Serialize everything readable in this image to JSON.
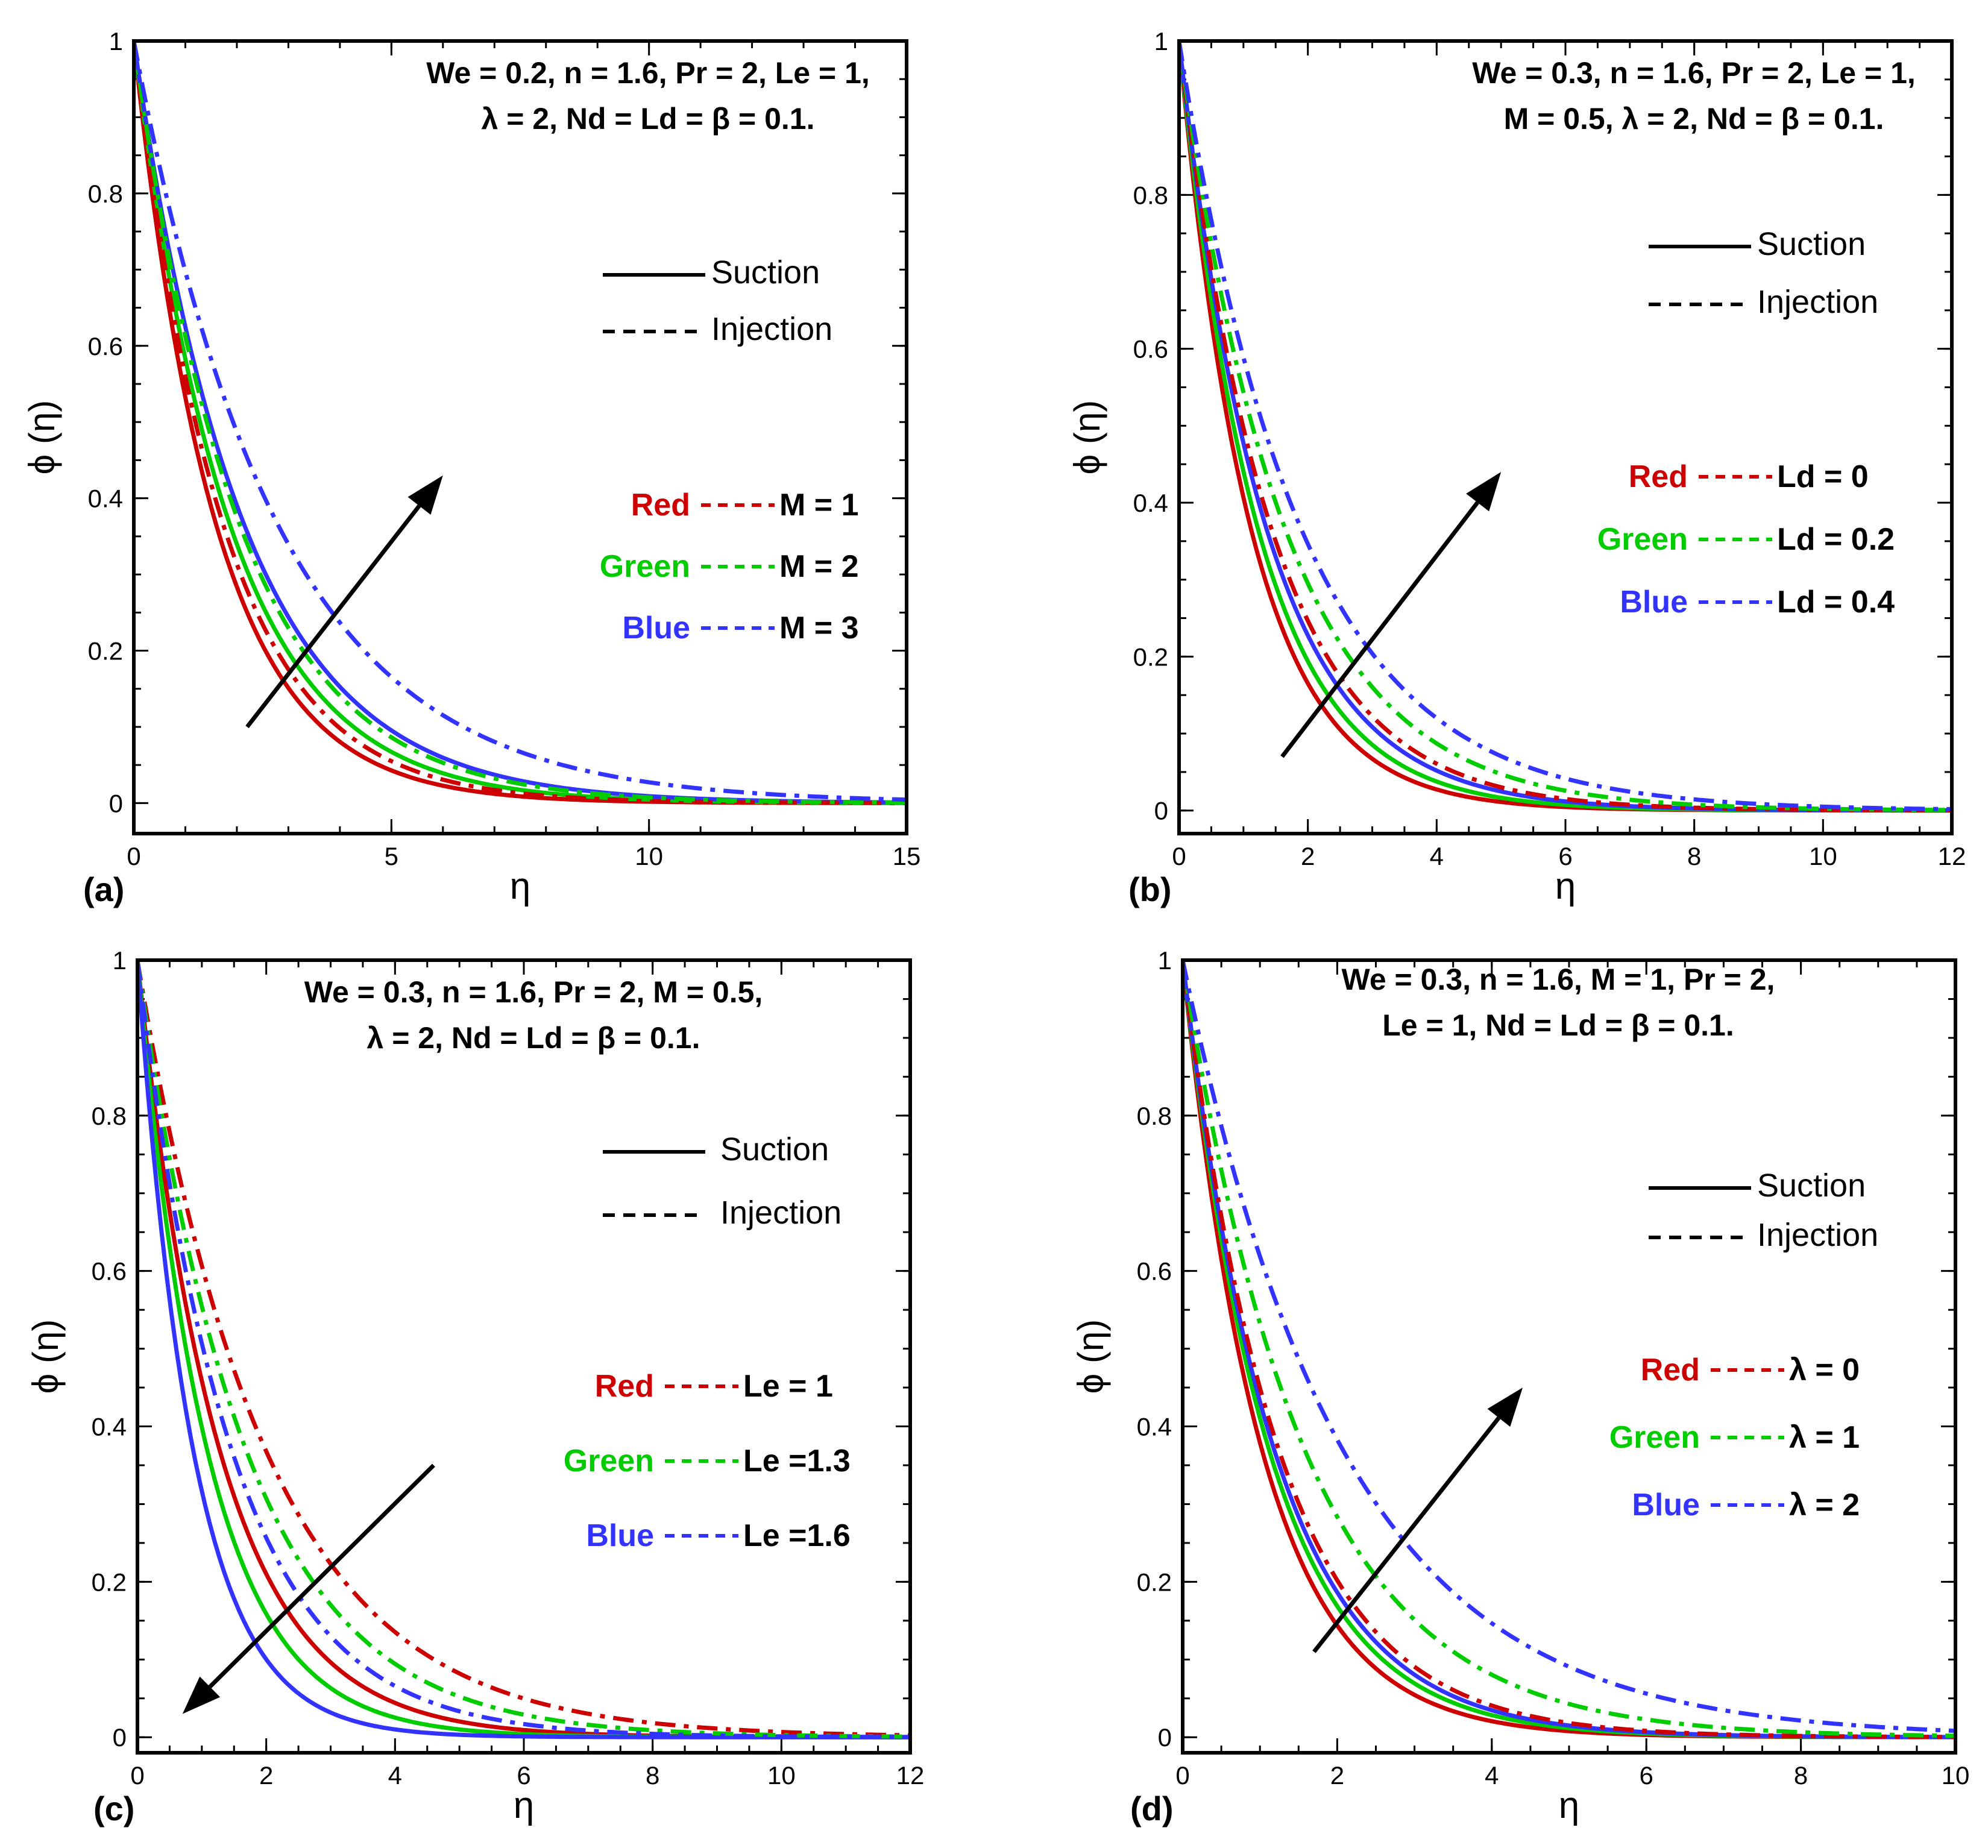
{
  "colors": {
    "red": "#cc0000",
    "green": "#00cc00",
    "blue": "#3333ff",
    "black": "#000000"
  },
  "chart_data": [
    {
      "id": "a",
      "type": "line",
      "panel_label": "(a)",
      "title_lines": [
        "We = 0.2, n = 1.6, Pr = 2,  Le = 1,",
        "λ = 2, Nd = Ld = β = 0.1."
      ],
      "xlabel": "η",
      "ylabel": "ϕ (η)",
      "xlim": [
        0,
        15
      ],
      "ylim": [
        -0.04,
        1
      ],
      "xticks": [
        0,
        5,
        10,
        15
      ],
      "yticks": [
        0,
        0.2,
        0.4,
        0.6,
        0.8,
        1
      ],
      "minor_x": 1,
      "minor_y": 0.05,
      "style_legend": [
        {
          "label": "Suction",
          "dash": "solid"
        },
        {
          "label": "Injection",
          "dash": "dashed"
        }
      ],
      "color_legend": [
        {
          "color_name": "Red",
          "color": "red",
          "label": "M = 1"
        },
        {
          "color_name": "Green",
          "color": "green",
          "label": "M = 2"
        },
        {
          "color_name": "Blue",
          "color": "blue",
          "label": "M = 3"
        }
      ],
      "series": [
        {
          "name": "Suction, M = 1",
          "color": "red",
          "dash": "solid",
          "decay": 0.63
        },
        {
          "name": "Suction, M = 2",
          "color": "green",
          "dash": "solid",
          "decay": 0.54
        },
        {
          "name": "Suction, M = 3",
          "color": "blue",
          "dash": "solid",
          "decay": 0.47
        },
        {
          "name": "Injection, M = 1",
          "color": "red",
          "dash": "dashdot",
          "decay": 0.58
        },
        {
          "name": "Injection, M = 2",
          "color": "green",
          "dash": "dashdot",
          "decay": 0.49
        },
        {
          "name": "Injection, M = 3",
          "color": "blue",
          "dash": "dashdot",
          "decay": 0.36
        }
      ],
      "arrow": {
        "from": [
          2.2,
          0.1
        ],
        "to": [
          6.0,
          0.43
        ]
      }
    },
    {
      "id": "b",
      "type": "line",
      "panel_label": "(b)",
      "title_lines": [
        "We = 0.3, n = 1.6, Pr = 2,  Le = 1,",
        "M = 0.5, λ = 2, Nd  = β = 0.1."
      ],
      "xlabel": "η",
      "ylabel": "ϕ (η)",
      "xlim": [
        0,
        12
      ],
      "ylim": [
        -0.03,
        1
      ],
      "xticks": [
        0,
        2,
        4,
        6,
        8,
        10,
        12
      ],
      "yticks": [
        0,
        0.2,
        0.4,
        0.6,
        0.8,
        1
      ],
      "minor_x": 0.5,
      "minor_y": 0.05,
      "style_legend": [
        {
          "label": "Suction",
          "dash": "solid"
        },
        {
          "label": "Injection",
          "dash": "dashed"
        }
      ],
      "color_legend": [
        {
          "color_name": "Red",
          "color": "red",
          "label": "Ld = 0"
        },
        {
          "color_name": "Green",
          "color": "green",
          "label": "Ld = 0.2"
        },
        {
          "color_name": "Blue",
          "color": "blue",
          "label": "Ld = 0.4"
        }
      ],
      "series": [
        {
          "name": "Suction, Ld = 0",
          "color": "red",
          "dash": "solid",
          "decay": 0.9
        },
        {
          "name": "Suction, Ld = 0.2",
          "color": "green",
          "dash": "solid",
          "decay": 0.82
        },
        {
          "name": "Suction, Ld = 0.4",
          "color": "blue",
          "dash": "solid",
          "decay": 0.74
        },
        {
          "name": "Injection, Ld = 0",
          "color": "red",
          "dash": "dashdot",
          "decay": 0.7
        },
        {
          "name": "Injection, Ld = 0.2",
          "color": "green",
          "dash": "dashdot",
          "decay": 0.61
        },
        {
          "name": "Injection, Ld = 0.4",
          "color": "blue",
          "dash": "dashdot",
          "decay": 0.53
        }
      ],
      "arrow": {
        "from": [
          1.6,
          0.07
        ],
        "to": [
          5.0,
          0.44
        ]
      }
    },
    {
      "id": "c",
      "type": "line",
      "panel_label": "(c)",
      "title_lines": [
        "We = 0.3, n = 1.6, Pr = 2, M = 0.5,",
        "λ = 2, Nd  = Ld = β = 0.1."
      ],
      "xlabel": "η",
      "ylabel": "ϕ (η)",
      "xlim": [
        0,
        12
      ],
      "ylim": [
        -0.02,
        1
      ],
      "xticks": [
        0,
        2,
        4,
        6,
        8,
        10,
        12
      ],
      "yticks": [
        0,
        0.2,
        0.4,
        0.6,
        0.8,
        1
      ],
      "minor_x": 0.5,
      "minor_y": 0.05,
      "style_legend": [
        {
          "label": "Suction",
          "dash": "solid"
        },
        {
          "label": "Injection",
          "dash": "dashed"
        }
      ],
      "color_legend": [
        {
          "color_name": "Red",
          "color": "red",
          "label": "Le = 1"
        },
        {
          "color_name": "Green",
          "color": "green",
          "label": "Le =1.3"
        },
        {
          "color_name": "Blue",
          "color": "blue",
          "label": "Le =1.6"
        }
      ],
      "series": [
        {
          "name": "Suction, Le = 1",
          "color": "red",
          "dash": "solid",
          "decay": 0.78
        },
        {
          "name": "Suction, Le = 1.3",
          "color": "green",
          "dash": "solid",
          "decay": 0.92
        },
        {
          "name": "Suction, Le = 1.6",
          "color": "blue",
          "dash": "solid",
          "decay": 1.15
        },
        {
          "name": "Injection, Le = 1",
          "color": "red",
          "dash": "dashdot",
          "decay": 0.5
        },
        {
          "name": "Injection, Le = 1.3",
          "color": "green",
          "dash": "dashdot",
          "decay": 0.59
        },
        {
          "name": "Injection, Le = 1.6",
          "color": "blue",
          "dash": "dashdot",
          "decay": 0.68
        }
      ],
      "arrow": {
        "from": [
          4.6,
          0.35
        ],
        "to": [
          0.7,
          0.03
        ]
      }
    },
    {
      "id": "d",
      "type": "line",
      "panel_label": "(d)",
      "title_lines": [
        "We =  0.3, n = 1.6, M = 1, Pr = 2,",
        "Le = 1, Nd = Ld = β = 0.1."
      ],
      "xlabel": "η",
      "ylabel": "ϕ (η)",
      "xlim": [
        0,
        10
      ],
      "ylim": [
        -0.02,
        1
      ],
      "xticks": [
        0,
        2,
        4,
        6,
        8,
        10
      ],
      "yticks": [
        0,
        0.2,
        0.4,
        0.6,
        0.8,
        1
      ],
      "minor_x": 0.5,
      "minor_y": 0.05,
      "style_legend": [
        {
          "label": "Suction",
          "dash": "solid"
        },
        {
          "label": "Injection",
          "dash": "dashed"
        }
      ],
      "color_legend": [
        {
          "color_name": "Red",
          "color": "red",
          "label": "λ = 0"
        },
        {
          "color_name": "Green",
          "color": "green",
          "label": "λ = 1"
        },
        {
          "color_name": "Blue",
          "color": "blue",
          "label": "λ = 2"
        }
      ],
      "series": [
        {
          "name": "Suction, λ = 0",
          "color": "red",
          "dash": "solid",
          "decay": 0.97
        },
        {
          "name": "Suction, λ = 1",
          "color": "green",
          "dash": "solid",
          "decay": 0.89
        },
        {
          "name": "Suction, λ = 2",
          "color": "blue",
          "dash": "solid",
          "decay": 0.84
        },
        {
          "name": "Injection, λ = 0",
          "color": "red",
          "dash": "dashdot",
          "decay": 0.8
        },
        {
          "name": "Injection, λ = 1",
          "color": "green",
          "dash": "dashdot",
          "decay": 0.63
        },
        {
          "name": "Injection, λ = 2",
          "color": "blue",
          "dash": "dashdot",
          "decay": 0.48
        }
      ],
      "arrow": {
        "from": [
          1.7,
          0.11
        ],
        "to": [
          4.4,
          0.45
        ]
      }
    }
  ]
}
